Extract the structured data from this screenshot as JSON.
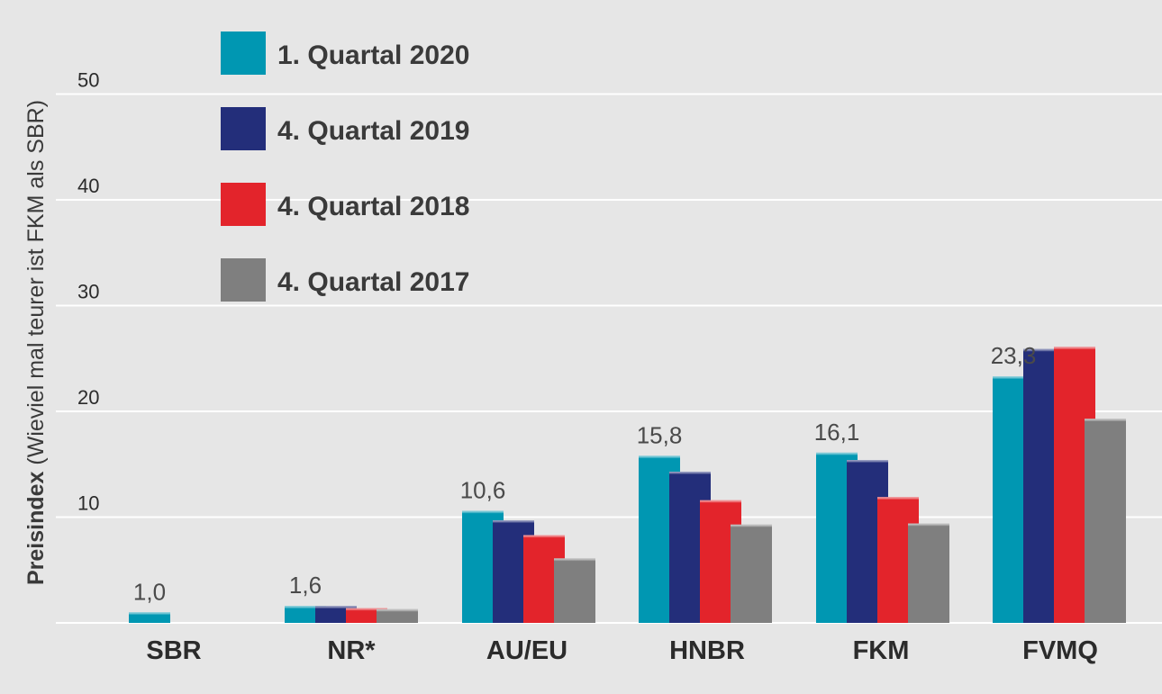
{
  "chart_data": {
    "type": "bar",
    "ylabel_bold": "Preisindex",
    "ylabel_rest": " (Wieviel mal teurer ist FKM als SBR)",
    "ylim": [
      0,
      50
    ],
    "yticks": [
      "50",
      "40",
      "30",
      "20",
      "10"
    ],
    "ytick_values": [
      50,
      40,
      30,
      20,
      10
    ],
    "grid": true,
    "legend_position": "top-left",
    "categories": [
      "SBR",
      "NR*",
      "AU/EU",
      "HNBR",
      "FKM",
      "FVMQ"
    ],
    "series": [
      {
        "name": "1. Quartal 2020",
        "color": "#0097b2",
        "values": [
          1.0,
          1.6,
          10.6,
          15.8,
          16.1,
          23.3
        ]
      },
      {
        "name": "4. Quartal 2019",
        "color": "#232e7a",
        "values": [
          null,
          1.6,
          9.7,
          14.3,
          15.4,
          25.9
        ]
      },
      {
        "name": "4. Quartal 2018",
        "color": "#e3242b",
        "values": [
          null,
          1.4,
          8.3,
          11.6,
          11.9,
          26.1
        ]
      },
      {
        "name": "4. Quartal 2017",
        "color": "#7f7f7f",
        "values": [
          null,
          1.3,
          6.1,
          9.3,
          9.4,
          19.3
        ]
      }
    ],
    "data_labels": [
      "1,0",
      "1,6",
      "10,6",
      "15,8",
      "16,1",
      "23,3"
    ]
  }
}
